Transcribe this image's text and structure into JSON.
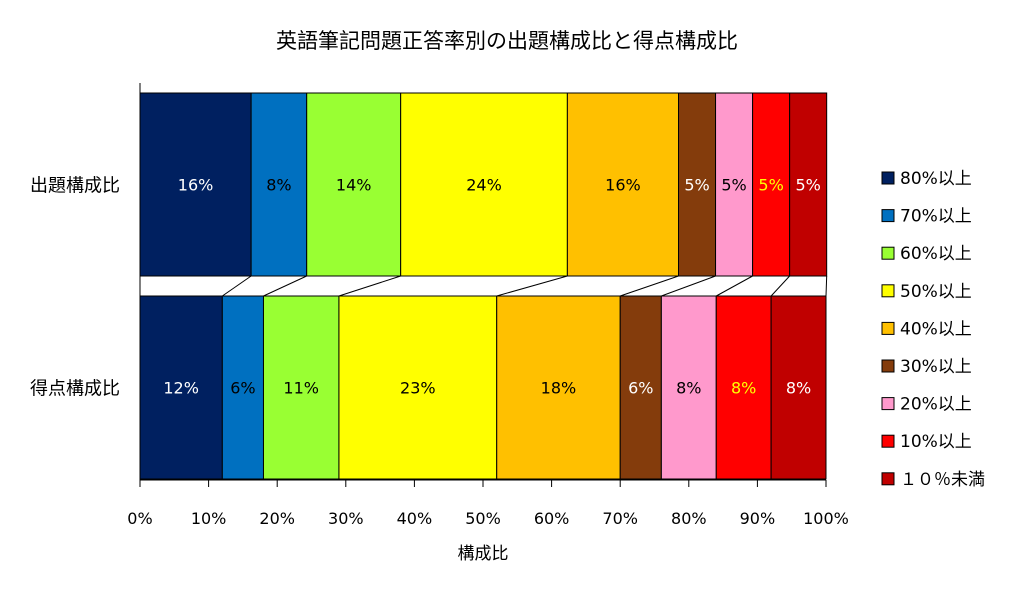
{
  "chart_data": {
    "type": "bar",
    "orientation": "horizontal",
    "stacked": "percent",
    "title": "英語筆記問題正答率別の出題構成比と得点構成比",
    "xlabel": "構成比",
    "ylabel": "",
    "xlim": [
      0,
      100
    ],
    "x_ticks": [
      "0%",
      "10%",
      "20%",
      "30%",
      "40%",
      "50%",
      "60%",
      "70%",
      "80%",
      "90%",
      "100%"
    ],
    "categories": [
      "出題構成比",
      "得点構成比"
    ],
    "legend_position": "right",
    "grid": false,
    "series_lines": true,
    "series": [
      {
        "name": "80%以上",
        "color": "#002060",
        "label_color": "#ffffff",
        "values": [
          16.2,
          12.0
        ],
        "labels": [
          "16%",
          "12%"
        ]
      },
      {
        "name": "70%以上",
        "color": "#0070C0",
        "label_color": "#000000",
        "values": [
          8.1,
          6.0
        ],
        "labels": [
          "8%",
          "6%"
        ]
      },
      {
        "name": "60%以上",
        "color": "#99FF33",
        "label_color": "#000000",
        "values": [
          13.7,
          11.0
        ],
        "labels": [
          "14%",
          "11%"
        ]
      },
      {
        "name": "50%以上",
        "color": "#FFFF00",
        "label_color": "#000000",
        "values": [
          24.3,
          23.0
        ],
        "labels": [
          "24%",
          "23%"
        ]
      },
      {
        "name": "40%以上",
        "color": "#FFC000",
        "label_color": "#000000",
        "values": [
          16.2,
          18.0
        ],
        "labels": [
          "16%",
          "18%"
        ]
      },
      {
        "name": "30%以上",
        "color": "#843C0C",
        "label_color": "#ffffff",
        "values": [
          5.4,
          6.0
        ],
        "labels": [
          "5%",
          "6%"
        ]
      },
      {
        "name": "20%以上",
        "color": "#FF99CC",
        "label_color": "#000000",
        "values": [
          5.4,
          8.0
        ],
        "labels": [
          "5%",
          "8%"
        ]
      },
      {
        "name": "10%以上",
        "color": "#FF0000",
        "label_color": "#FFFF00",
        "values": [
          5.4,
          8.0
        ],
        "labels": [
          "5%",
          "8%"
        ]
      },
      {
        "name": "１０％未満",
        "color": "#C00000",
        "label_color": "#ffffff",
        "values": [
          5.4,
          8.0
        ],
        "labels": [
          "5%",
          "8%"
        ]
      }
    ]
  }
}
